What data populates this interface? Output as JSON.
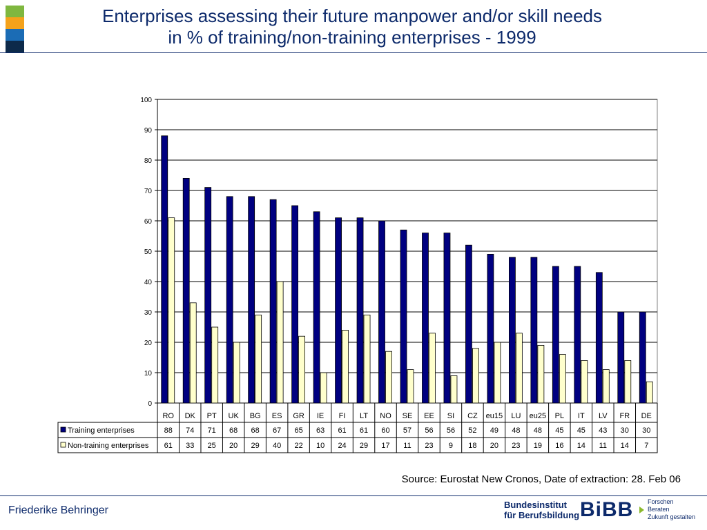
{
  "header": {
    "title_line1": "Enterprises assessing their future manpower and/or skill needs",
    "title_line2": "in % of training/non-training enterprises - 1999",
    "stripe_colors": [
      "#7fb73f",
      "#f4a21b",
      "#1b6cb5",
      "#0d2a4a"
    ]
  },
  "chart_data": {
    "type": "bar",
    "categories": [
      "RO",
      "DK",
      "PT",
      "UK",
      "BG",
      "ES",
      "GR",
      "IE",
      "FI",
      "LT",
      "NO",
      "SE",
      "EE",
      "SI",
      "CZ",
      "eu15",
      "LU",
      "eu25",
      "PL",
      "IT",
      "LV",
      "FR",
      "DE"
    ],
    "series": [
      {
        "name": "Training enterprises",
        "color": "#000080",
        "values": [
          88,
          74,
          71,
          68,
          68,
          67,
          65,
          63,
          61,
          61,
          60,
          57,
          56,
          56,
          52,
          49,
          48,
          48,
          45,
          45,
          43,
          30,
          30
        ]
      },
      {
        "name": "Non-training enterprises",
        "color": "#ffffcc",
        "values": [
          61,
          33,
          25,
          20,
          29,
          40,
          22,
          10,
          24,
          29,
          17,
          11,
          23,
          9,
          18,
          20,
          23,
          19,
          16,
          14,
          11,
          14,
          7
        ]
      }
    ],
    "ylim": [
      0,
      100
    ],
    "yticks": [
      0,
      10,
      20,
      30,
      40,
      50,
      60,
      70,
      80,
      90,
      100
    ],
    "grid": true,
    "legend": "data-table"
  },
  "footer": {
    "source": "Source: Eurostat New Cronos, Date of extraction: 28. Feb 06",
    "author": "Friederike Behringer",
    "logo_institute_line1": "Bundesinstitut",
    "logo_institute_line2": "für Berufsbildung",
    "logo_brand": "BiBB",
    "logo_tagline_1": "Forschen",
    "logo_tagline_2": "Beraten",
    "logo_tagline_3": "Zukunft gestalten"
  }
}
